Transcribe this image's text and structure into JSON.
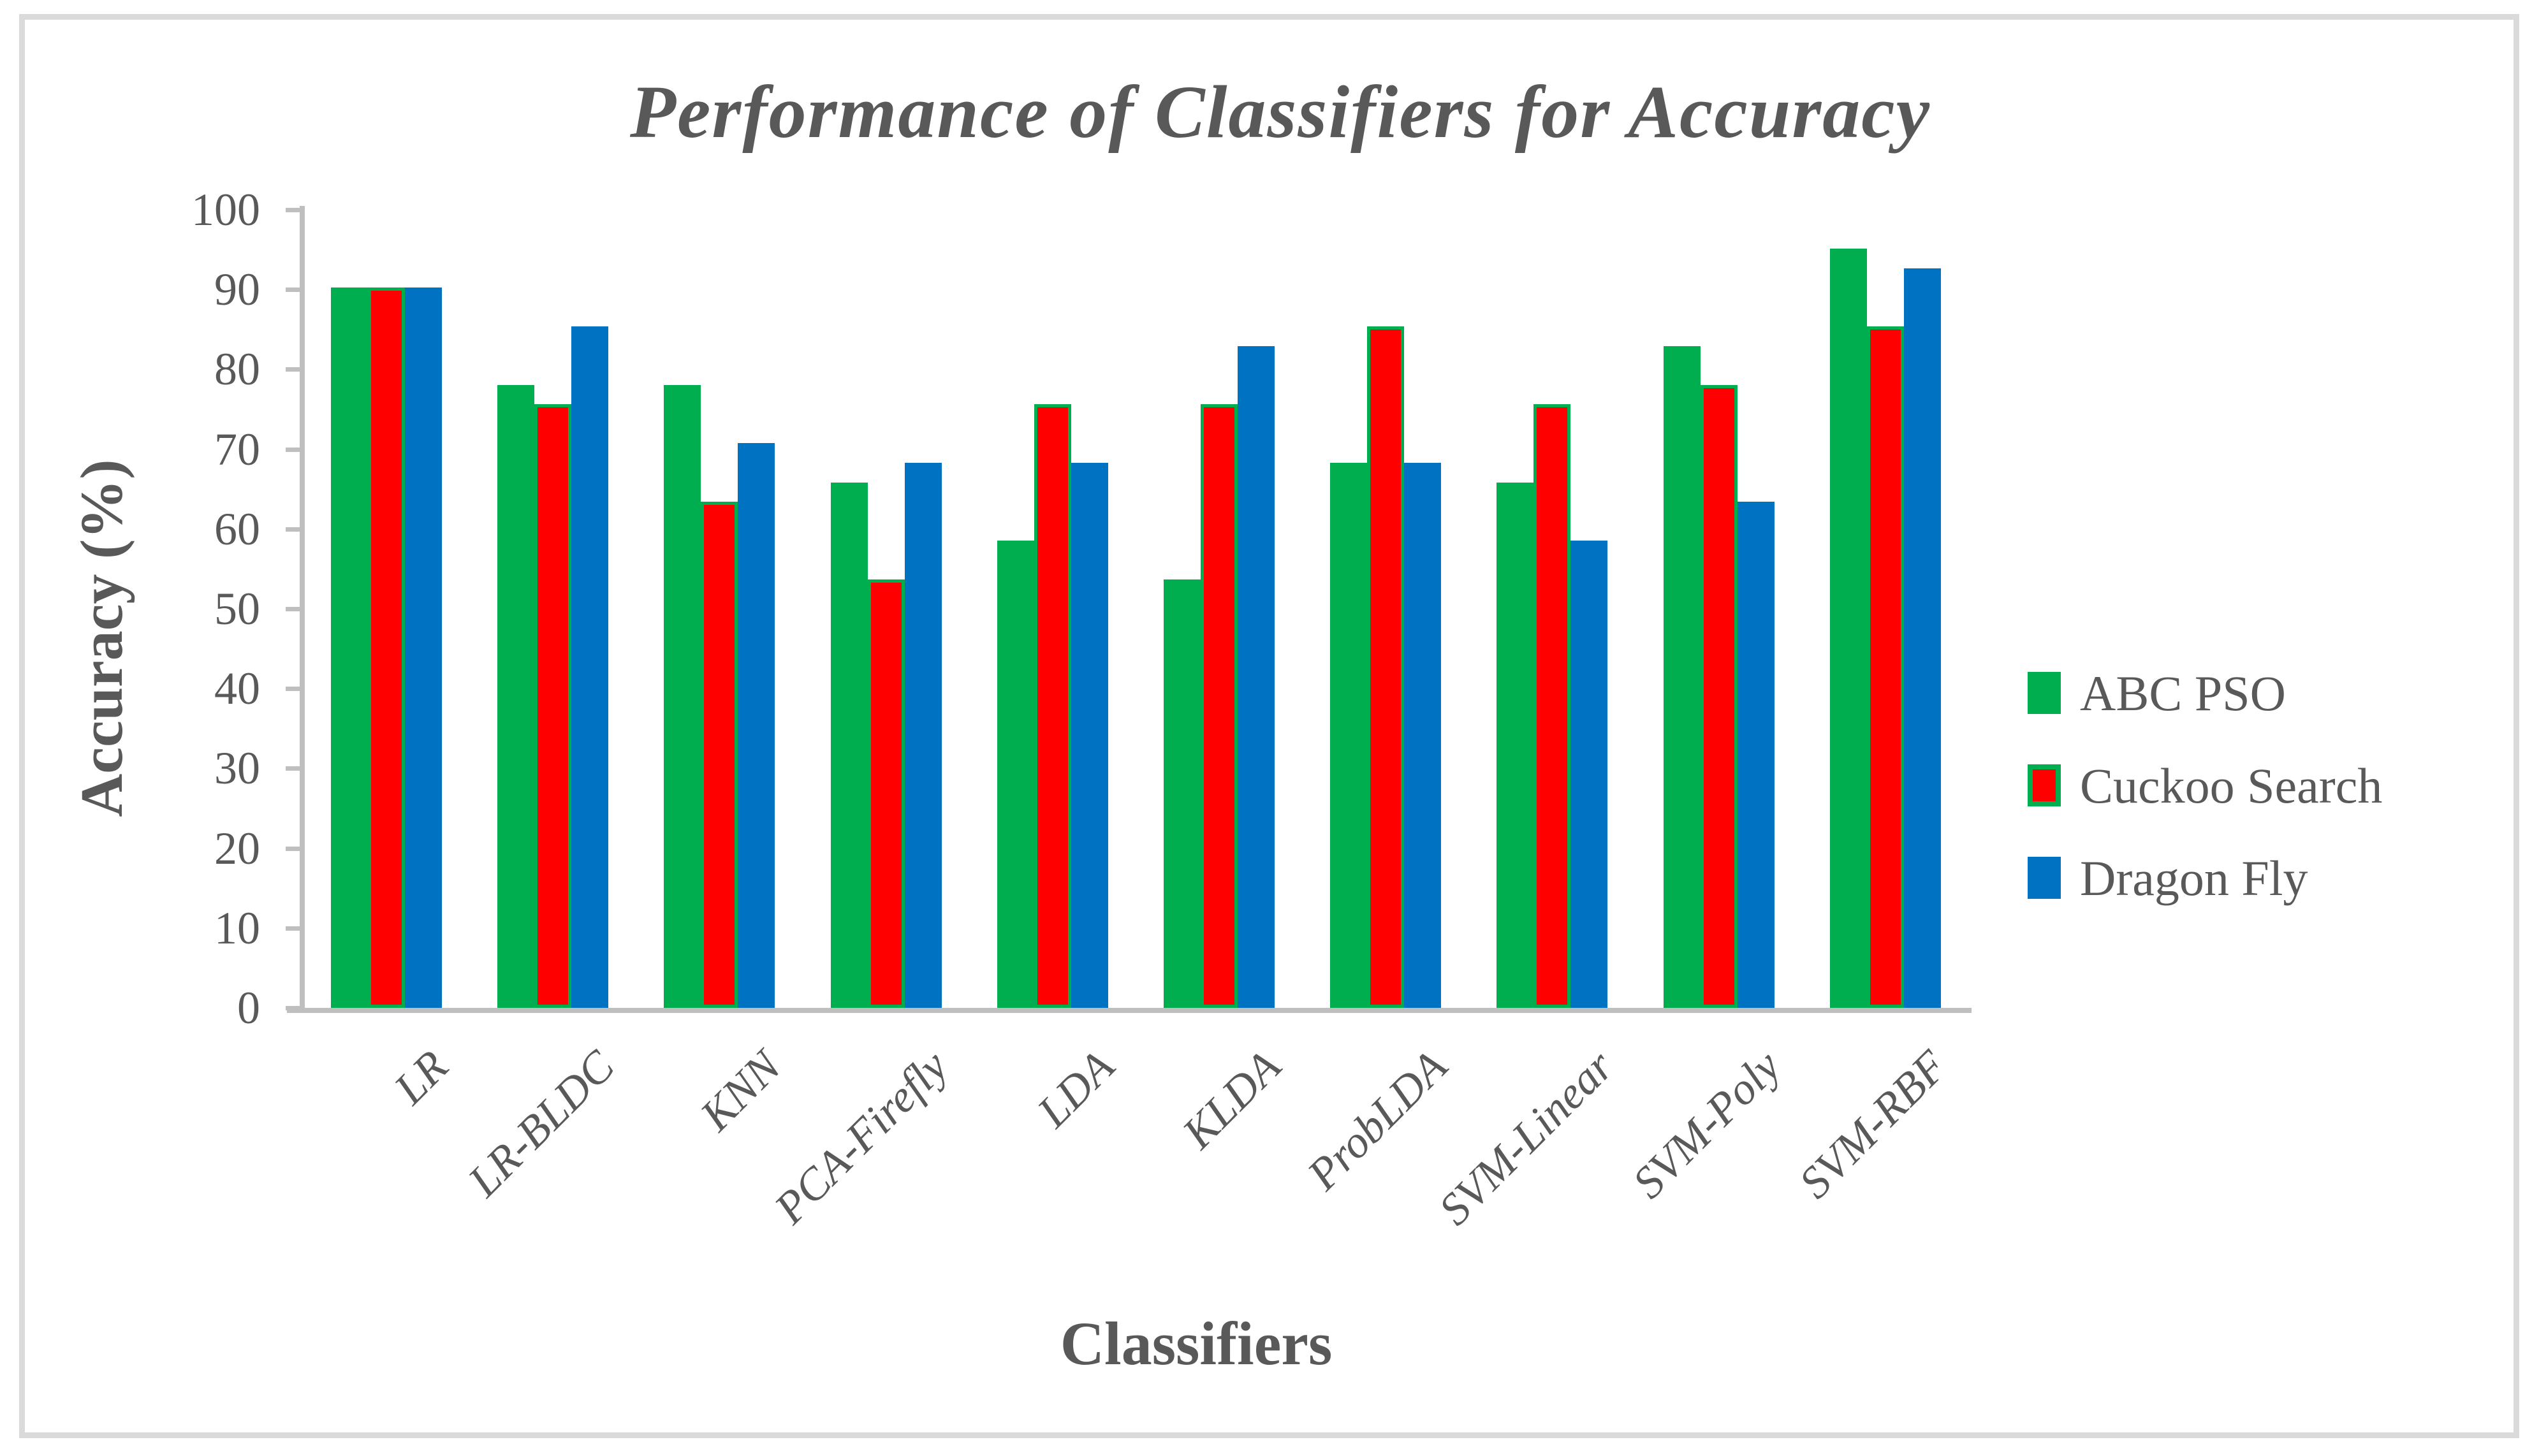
{
  "chart_data": {
    "type": "bar",
    "title": "Performance of Classifiers for Accuracy",
    "xlabel": "Classifiers",
    "ylabel": "Accuracy (%)",
    "ylim": [
      0,
      100
    ],
    "yticks": [
      0,
      10,
      20,
      30,
      40,
      50,
      60,
      70,
      80,
      90,
      100
    ],
    "grid": false,
    "legend_position": "right",
    "categories": [
      "LR",
      "LR-BLDC",
      "KNN",
      "PCA-Firefly",
      "LDA",
      "KLDA",
      "ProbLDA",
      "SVM-Linear",
      "SVM-Poly",
      "SVM-RBF"
    ],
    "series": [
      {
        "name": "ABC PSO",
        "color": "#00AE50",
        "values": [
          90.24,
          78.05,
          78.05,
          65.85,
          58.54,
          53.66,
          68.29,
          65.85,
          82.93,
          95.12
        ]
      },
      {
        "name": "Cuckoo Search",
        "color": "#FF0000",
        "border_color": "#00AE50",
        "values": [
          90.24,
          75.61,
          63.41,
          53.66,
          75.61,
          75.61,
          85.37,
          75.61,
          78.05,
          85.37
        ]
      },
      {
        "name": "Dragon Fly",
        "color": "#0072C2",
        "values": [
          90.24,
          85.37,
          70.73,
          68.29,
          68.29,
          82.93,
          68.29,
          58.54,
          63.41,
          92.68
        ]
      }
    ]
  },
  "colors": {
    "axis": "#BFBFBF",
    "frame": "#DADADA",
    "text": "#595959"
  }
}
